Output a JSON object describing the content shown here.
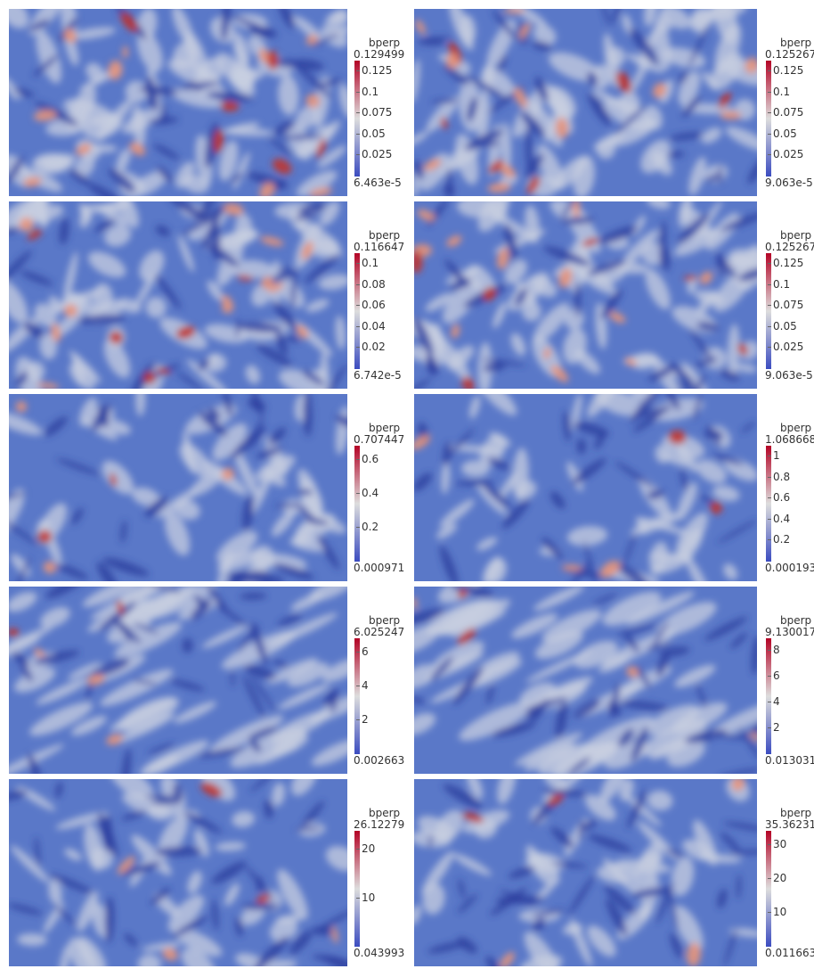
{
  "colors": {
    "low": "#3b4cc0",
    "mid": "#dddddd",
    "high": "#b40426",
    "field_base": "#5a78c8"
  },
  "panels": [
    {
      "title": "bperp",
      "max": "0.129499",
      "min": "6.463e-5",
      "ticks": [
        "0.125",
        "0.1",
        "0.075",
        "0.05",
        "0.025"
      ],
      "seed": 1,
      "style": "blobs"
    },
    {
      "title": "bperp",
      "max": "0.125267",
      "min": "9.063e-5",
      "ticks": [
        "0.125",
        "0.1",
        "0.075",
        "0.05",
        "0.025"
      ],
      "seed": 2,
      "style": "blobs"
    },
    {
      "title": "bperp",
      "max": "0.116647",
      "min": "6.742e-5",
      "ticks": [
        "0.1",
        "0.08",
        "0.06",
        "0.04",
        "0.02"
      ],
      "seed": 3,
      "style": "blobs"
    },
    {
      "title": "bperp",
      "max": "0.125267",
      "min": "9.063e-5",
      "ticks": [
        "0.125",
        "0.1",
        "0.075",
        "0.05",
        "0.025"
      ],
      "seed": 4,
      "style": "blobs"
    },
    {
      "title": "bperp",
      "max": "0.707447",
      "min": "0.000971",
      "ticks": [
        "0.6",
        "0.4",
        "0.2"
      ],
      "seed": 5,
      "style": "smooth"
    },
    {
      "title": "bperp",
      "max": "1.068668",
      "min": "0.000193",
      "ticks": [
        "1",
        "0.8",
        "0.6",
        "0.4",
        "0.2"
      ],
      "seed": 6,
      "style": "smooth"
    },
    {
      "title": "bperp",
      "max": "6.025247",
      "min": "0.002663",
      "ticks": [
        "6",
        "4",
        "2"
      ],
      "seed": 7,
      "style": "streaks"
    },
    {
      "title": "bperp",
      "max": "9.130017",
      "min": "0.013031",
      "ticks": [
        "8",
        "6",
        "4",
        "2"
      ],
      "seed": 8,
      "style": "streaks"
    },
    {
      "title": "bperp",
      "max": "26.12279",
      "min": "0.043993",
      "ticks": [
        "20",
        "10"
      ],
      "seed": 9,
      "style": "swirl"
    },
    {
      "title": "bperp",
      "max": "35.36231",
      "min": "0.011663",
      "ticks": [
        "30",
        "20",
        "10"
      ],
      "seed": 10,
      "style": "swirl"
    }
  ]
}
